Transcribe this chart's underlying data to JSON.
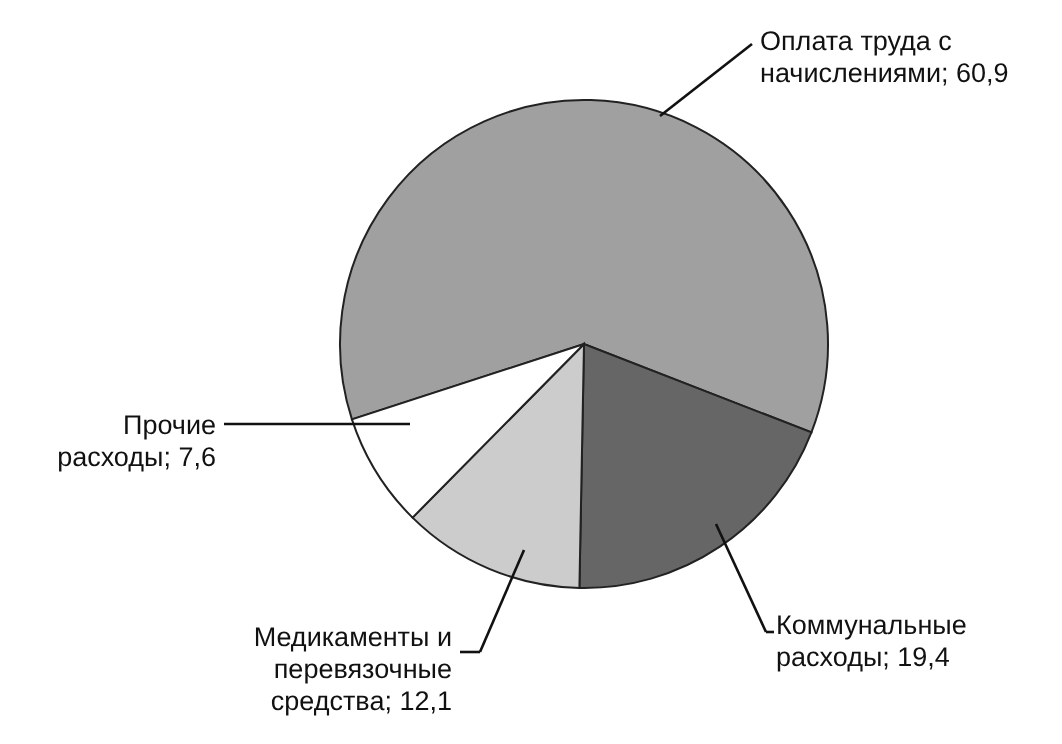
{
  "chart_data": {
    "type": "pie",
    "categories": [
      "Оплата труда с начислениями",
      "Коммунальные расходы",
      "Медикаменты и перевязочные средства",
      "Прочие расходы"
    ],
    "values": [
      60.9,
      19.4,
      12.1,
      7.6
    ],
    "value_labels": [
      "60,9",
      "19,4",
      "12,1",
      "7,6"
    ],
    "colors": [
      "#a0a0a0",
      "#666666",
      "#cccccc",
      "#ffffff"
    ],
    "legend": false
  }
}
